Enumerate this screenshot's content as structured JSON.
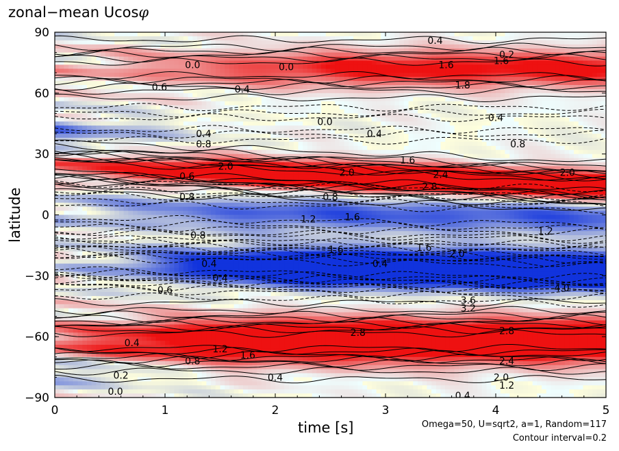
{
  "chart_data": {
    "type": "heatmap",
    "title_text": "zonal−mean Ucos",
    "title_symbol": "φ",
    "xlabel": "time [s]",
    "ylabel": "latitude",
    "xlim": [
      0,
      5
    ],
    "ylim": [
      -90,
      90
    ],
    "x_ticks": [
      0,
      1,
      2,
      3,
      4,
      5
    ],
    "x_tick_labels": [
      "0",
      "1",
      "2",
      "3",
      "4",
      "5"
    ],
    "y_ticks": [
      90,
      60,
      30,
      0,
      -30,
      -60,
      -90
    ],
    "y_tick_labels": [
      "90",
      "60",
      "30",
      "0",
      "−30",
      "−60",
      "−90"
    ],
    "colorscale": {
      "positive": "#ee1111",
      "negative": "#1133dd",
      "zero": "#ffffff"
    },
    "contour_interval": 0.2,
    "negative_contours": "dashed",
    "annotations": [
      "Omega=50, U=sqrt2, a=1, Random=117",
      "Contour interval=0.2"
    ],
    "contour_labels": [
      {
        "x": 3.45,
        "y": 86,
        "text": "0.4"
      },
      {
        "x": 4.1,
        "y": 79,
        "text": "0.2"
      },
      {
        "x": 1.25,
        "y": 74,
        "text": "0.0"
      },
      {
        "x": 2.1,
        "y": 73,
        "text": "0.0"
      },
      {
        "x": 3.55,
        "y": 74,
        "text": "1.6"
      },
      {
        "x": 4.05,
        "y": 76,
        "text": "1.6"
      },
      {
        "x": 0.95,
        "y": 63,
        "text": "0.6"
      },
      {
        "x": 1.7,
        "y": 62,
        "text": "0.4"
      },
      {
        "x": 3.7,
        "y": 64,
        "text": "1.8"
      },
      {
        "x": 2.45,
        "y": 46,
        "text": "0.0"
      },
      {
        "x": 4.0,
        "y": 48,
        "text": "0.4"
      },
      {
        "x": 1.35,
        "y": 40,
        "text": "0.4"
      },
      {
        "x": 2.9,
        "y": 40,
        "text": "0.4"
      },
      {
        "x": 1.35,
        "y": 35,
        "text": "0.8"
      },
      {
        "x": 4.2,
        "y": 35,
        "text": "0.8"
      },
      {
        "x": 1.55,
        "y": 24,
        "text": "2.0"
      },
      {
        "x": 3.2,
        "y": 27,
        "text": "1.6"
      },
      {
        "x": 2.65,
        "y": 21,
        "text": "2.0"
      },
      {
        "x": 3.5,
        "y": 20,
        "text": "2.4"
      },
      {
        "x": 4.65,
        "y": 21,
        "text": "2.0"
      },
      {
        "x": 1.2,
        "y": 19,
        "text": "0.6"
      },
      {
        "x": 3.4,
        "y": 14,
        "text": "2.8"
      },
      {
        "x": 1.2,
        "y": 9,
        "text": "0.8"
      },
      {
        "x": 2.5,
        "y": 9,
        "text": "0.8"
      },
      {
        "x": 2.3,
        "y": -2,
        "text": "1.2"
      },
      {
        "x": 2.7,
        "y": -1,
        "text": "1.6"
      },
      {
        "x": 4.45,
        "y": -8,
        "text": "1.2"
      },
      {
        "x": 1.3,
        "y": -10,
        "text": "0.8"
      },
      {
        "x": 2.55,
        "y": -17,
        "text": "1.6"
      },
      {
        "x": 3.35,
        "y": -16,
        "text": "1.6"
      },
      {
        "x": 3.65,
        "y": -19,
        "text": "2.0"
      },
      {
        "x": 1.4,
        "y": -24,
        "text": "0.4"
      },
      {
        "x": 1.5,
        "y": -31,
        "text": "0.4"
      },
      {
        "x": 2.95,
        "y": -24,
        "text": "0.4"
      },
      {
        "x": 4.6,
        "y": -36,
        "text": "4.0"
      },
      {
        "x": 3.75,
        "y": -42,
        "text": "3.6"
      },
      {
        "x": 3.75,
        "y": -46,
        "text": "3.2"
      },
      {
        "x": 1.0,
        "y": -37,
        "text": "0.6"
      },
      {
        "x": 4.1,
        "y": -57,
        "text": "2.8"
      },
      {
        "x": 0.7,
        "y": -63,
        "text": "0.4"
      },
      {
        "x": 2.75,
        "y": -58,
        "text": "2.8"
      },
      {
        "x": 1.5,
        "y": -66,
        "text": "1.2"
      },
      {
        "x": 1.75,
        "y": -69,
        "text": "1.6"
      },
      {
        "x": 1.25,
        "y": -72,
        "text": "0.8"
      },
      {
        "x": 4.1,
        "y": -72,
        "text": "2.4"
      },
      {
        "x": 4.05,
        "y": -80,
        "text": "2.0"
      },
      {
        "x": 0.6,
        "y": -79,
        "text": "0.2"
      },
      {
        "x": 4.1,
        "y": -84,
        "text": "1.2"
      },
      {
        "x": 2.0,
        "y": -80,
        "text": "0.4"
      },
      {
        "x": 0.55,
        "y": -87,
        "text": "0.0"
      },
      {
        "x": 3.7,
        "y": -89,
        "text": "0.4"
      }
    ]
  }
}
